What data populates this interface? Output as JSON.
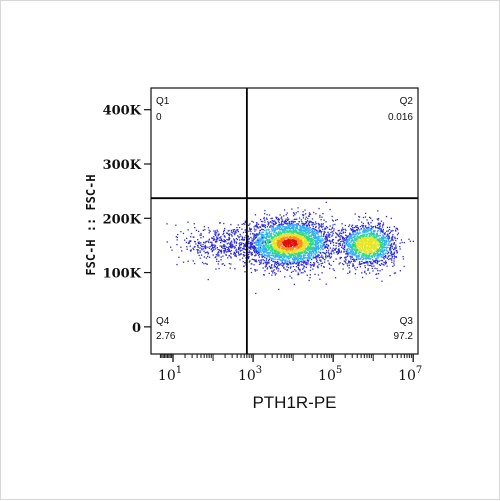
{
  "chart_data": {
    "type": "scatter",
    "subtype": "flow-cytometry-density-dot-plot",
    "xlabel": "PTH1R-PE",
    "ylabel": "FSC-H :: FSC-H",
    "x_scale": "biexponential",
    "y_scale": "linear",
    "xlim": [
      0,
      10000000
    ],
    "ylim": [
      -50000,
      440000
    ],
    "x_ticks": [
      {
        "base": "10",
        "exp": "1",
        "value": 10
      },
      {
        "base": "10",
        "exp": "3",
        "value": 1000
      },
      {
        "base": "10",
        "exp": "5",
        "value": 100000
      },
      {
        "base": "10",
        "exp": "7",
        "value": 10000000
      }
    ],
    "y_ticks": [
      {
        "label": "0",
        "value": 0
      },
      {
        "label": "100K",
        "value": 100000
      },
      {
        "label": "200K",
        "value": 200000
      },
      {
        "label": "300K",
        "value": 300000
      },
      {
        "label": "400K",
        "value": 400000
      }
    ],
    "gate": {
      "x": 700,
      "y": 237000
    },
    "quadrants": [
      {
        "name": "Q1",
        "value": "0",
        "position": "top-left"
      },
      {
        "name": "Q2",
        "value": "0.016",
        "position": "top-right"
      },
      {
        "name": "Q3",
        "value": "97.2",
        "position": "bottom-right"
      },
      {
        "name": "Q4",
        "value": "2.76",
        "position": "bottom-left"
      }
    ],
    "populations": [
      {
        "center_x": 8000,
        "center_y": 155000,
        "spread_log_x": 0.55,
        "spread_y": 22000,
        "weight": 0.62
      },
      {
        "center_x": 700000,
        "center_y": 152000,
        "spread_log_x": 0.35,
        "spread_y": 19000,
        "weight": 0.3
      },
      {
        "center_x": 150,
        "center_y": 152000,
        "spread_log_x": 0.45,
        "spread_y": 18000,
        "weight": 0.08
      }
    ],
    "color_scale": [
      "#2d2dd8",
      "#2fb0ff",
      "#31d98a",
      "#e6e62a",
      "#ff8a1a",
      "#e01010"
    ],
    "grid": false,
    "legend": "none"
  }
}
